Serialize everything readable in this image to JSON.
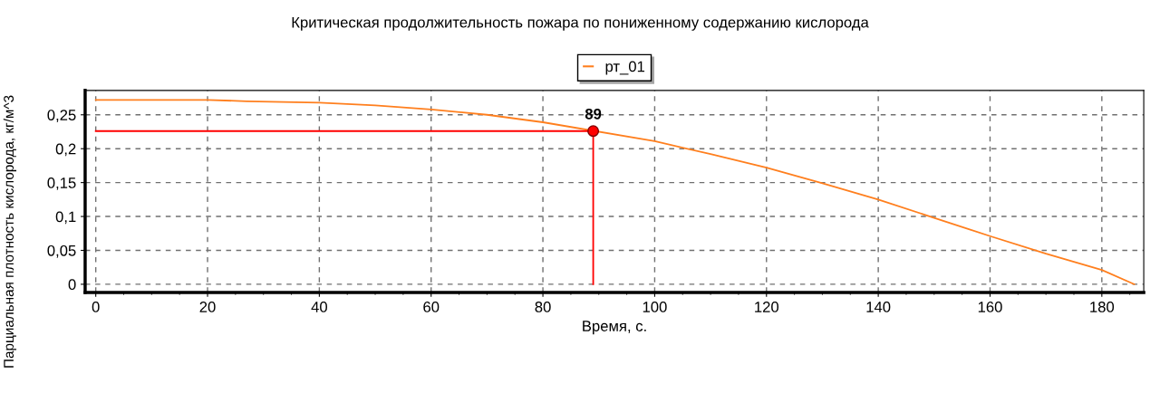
{
  "chart_data": {
    "type": "line",
    "title": "Критическая продолжительность пожара по пониженному содержанию кислорода",
    "xlabel": "Время, с.",
    "ylabel": "Парциальная плотность кислорода, кг/м^3",
    "series": [
      {
        "name": "рт_01",
        "color": "#ff7f1e",
        "x": [
          0,
          20,
          27,
          40,
          50,
          60,
          70,
          80,
          100,
          110,
          120,
          130,
          140,
          150,
          160,
          170,
          180,
          185.8
        ],
        "values": [
          0.272,
          0.272,
          0.27,
          0.268,
          0.264,
          0.258,
          0.25,
          0.239,
          0.211,
          0.192,
          0.172,
          0.149,
          0.125,
          0.098,
          0.071,
          0.045,
          0.021,
          0
        ]
      },
      {
        "type": "line",
        "color": "#ff0000",
        "x": [
          0,
          89,
          89
        ],
        "values": [
          0.226,
          0.226,
          0
        ],
        "marker": "none"
      },
      {
        "type": "scatter",
        "color": "#ff0000",
        "x": [
          89
        ],
        "values": [
          0.226
        ],
        "marker": "circle"
      }
    ],
    "annotations": [
      {
        "text": "89",
        "x": 89,
        "y": 0.226
      }
    ],
    "xlim": [
      -1.9,
      187.5
    ],
    "ylim": [
      -0.012,
      0.286
    ],
    "xticks": [
      0,
      20,
      40,
      60,
      80,
      100,
      120,
      140,
      160,
      180
    ],
    "yticks": [
      0,
      {
        "value": 0.05,
        "label": "0,05"
      },
      {
        "value": 0.1,
        "label": "0,1"
      },
      {
        "value": 0.15,
        "label": "0,15"
      },
      {
        "value": 0.2,
        "label": "0,2"
      },
      {
        "value": 0.25,
        "label": "0,25"
      }
    ],
    "grid": true,
    "legend": "top",
    "line_style": "solid"
  }
}
